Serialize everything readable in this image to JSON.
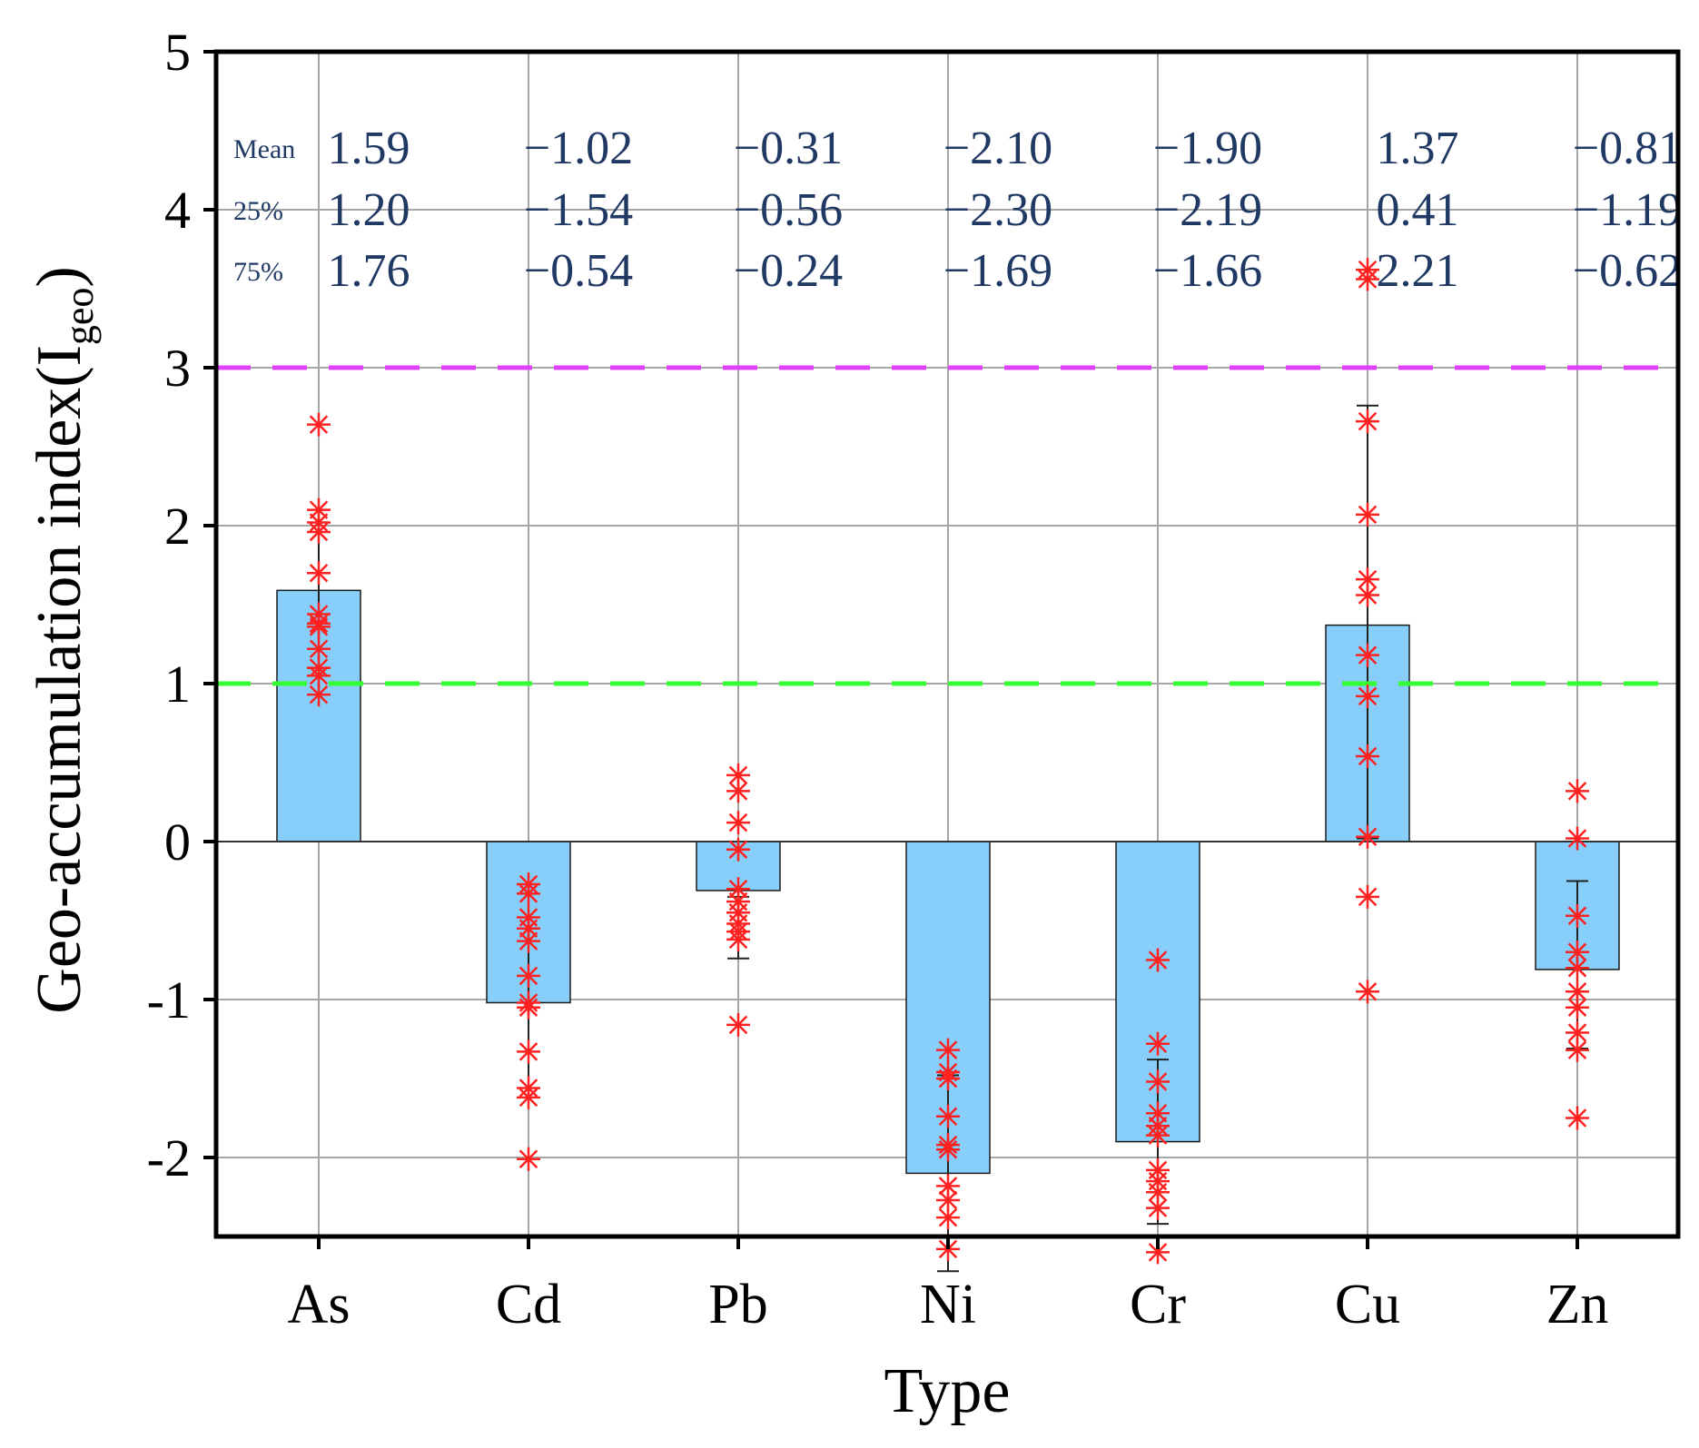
{
  "chart_data": {
    "type": "bar",
    "title": "",
    "xlabel": "Type",
    "ylabel": "Geo-accumulation index(I",
    "ylabel_subscript": "geo",
    "ylabel_close": ")",
    "ylim": [
      -2.5,
      5
    ],
    "yticks": [
      "-2",
      "-1",
      "0",
      "1",
      "2",
      "3",
      "4",
      "5"
    ],
    "ytick_values": [
      -2,
      -1,
      0,
      1,
      2,
      3,
      4,
      5
    ],
    "grid": true,
    "categories": [
      "As",
      "Cd",
      "Pb",
      "Ni",
      "Cr",
      "Cu",
      "Zn"
    ],
    "values": [
      1.59,
      -1.02,
      -0.31,
      -2.1,
      -1.9,
      1.37,
      -0.81
    ],
    "bar_color": "#87cefa",
    "error_bars": [
      {
        "low": 1.1,
        "high": 2.1
      },
      {
        "low": -1.56,
        "high": -0.48
      },
      {
        "low": -0.74,
        "high": -0.35
      },
      {
        "low": -2.72,
        "high": -1.48
      },
      {
        "low": -2.42,
        "high": -1.38
      },
      {
        "low": 0.02,
        "high": 2.76
      },
      {
        "low": -1.31,
        "high": -0.25
      }
    ],
    "points": [
      [
        2.64,
        2.1,
        2.02,
        1.96,
        1.7,
        1.44,
        1.38,
        1.36,
        1.22,
        1.1,
        1.05,
        0.93
      ],
      [
        -0.27,
        -0.33,
        -0.48,
        -0.55,
        -0.63,
        -0.85,
        -1.02,
        -1.05,
        -1.33,
        -1.56,
        -1.62,
        -2.01
      ],
      [
        0.42,
        0.32,
        0.12,
        -0.05,
        -0.3,
        -0.38,
        -0.45,
        -0.52,
        -0.57,
        -0.62,
        -1.16
      ],
      [
        -1.32,
        -1.46,
        -1.5,
        -1.74,
        -1.92,
        -1.95,
        -2.18,
        -2.27,
        -2.38,
        -2.58
      ],
      [
        -0.75,
        -1.28,
        -1.52,
        -1.72,
        -1.8,
        -1.86,
        -2.08,
        -2.15,
        -2.22,
        -2.32,
        -2.6
      ],
      [
        3.62,
        3.56,
        2.66,
        2.07,
        1.66,
        1.56,
        1.18,
        0.92,
        0.54,
        0.03,
        -0.35,
        -0.95
      ],
      [
        0.32,
        0.02,
        -0.47,
        -0.7,
        -0.8,
        -0.95,
        -1.05,
        -1.21,
        -1.32,
        -1.75
      ]
    ],
    "point_color": "#ff2020",
    "reference_lines": [
      {
        "y": 3,
        "color": "#e040fb",
        "style": "dashed"
      },
      {
        "y": 1,
        "color": "#33ff33",
        "style": "dashed"
      }
    ],
    "stats": {
      "labels": [
        "Mean",
        "25%",
        "75%"
      ],
      "rows": [
        [
          "1.59",
          "−1.02",
          "−0.31",
          "−2.10",
          "−1.90",
          "1.37",
          "−0.81"
        ],
        [
          "1.20",
          "−1.54",
          "−0.56",
          "−2.30",
          "−2.19",
          "0.41",
          "−1.19"
        ],
        [
          "1.76",
          "−0.54",
          "−0.24",
          "−1.69",
          "−1.66",
          "2.21",
          "−0.62"
        ]
      ]
    }
  }
}
